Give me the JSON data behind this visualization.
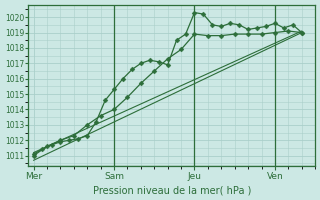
{
  "xlabel": "Pression niveau de la mer( hPa )",
  "background_color": "#cce8e4",
  "grid_color": "#aacfca",
  "line_color": "#2d6e3a",
  "ylim": [
    1010.3,
    1020.8
  ],
  "yticks": [
    1011,
    1012,
    1013,
    1014,
    1015,
    1016,
    1017,
    1018,
    1019,
    1020
  ],
  "xtick_positions": [
    0,
    3,
    6,
    9
  ],
  "xtick_labels": [
    "Mer",
    "Sam",
    "Jeu",
    "Ven"
  ],
  "xlim": [
    -0.2,
    10.5
  ],
  "vlines_x": [
    3.0,
    6.0,
    9.0
  ],
  "series1_marked": {
    "x": [
      0,
      0.33,
      0.67,
      1.0,
      1.33,
      1.67,
      2.0,
      2.33,
      2.67,
      3.0,
      3.33,
      3.67,
      4.0,
      4.33,
      4.67,
      5.0,
      5.33,
      5.67,
      6.0,
      6.33,
      6.67,
      7.0,
      7.33,
      7.67,
      8.0,
      8.33,
      8.67,
      9.0,
      9.33,
      9.67,
      10.0
    ],
    "y": [
      1011.0,
      1011.4,
      1011.7,
      1011.9,
      1012.0,
      1012.1,
      1012.3,
      1013.2,
      1014.6,
      1015.3,
      1016.0,
      1016.6,
      1017.0,
      1017.2,
      1017.1,
      1016.9,
      1018.5,
      1018.9,
      1020.3,
      1020.2,
      1019.5,
      1019.4,
      1019.6,
      1019.5,
      1019.2,
      1019.3,
      1019.4,
      1019.6,
      1019.3,
      1019.5,
      1019.0
    ]
  },
  "series2_marked": {
    "x": [
      0,
      0.5,
      1.0,
      1.5,
      2.0,
      2.5,
      3.0,
      3.5,
      4.0,
      4.5,
      5.0,
      5.5,
      6.0,
      6.5,
      7.0,
      7.5,
      8.0,
      8.5,
      9.0,
      9.5,
      10.0
    ],
    "y": [
      1011.1,
      1011.6,
      1012.0,
      1012.3,
      1013.0,
      1013.6,
      1014.0,
      1014.8,
      1015.7,
      1016.5,
      1017.3,
      1017.9,
      1018.9,
      1018.8,
      1018.8,
      1018.9,
      1018.9,
      1018.9,
      1019.0,
      1019.1,
      1019.0
    ]
  },
  "series3_line": {
    "x": [
      0,
      10.0
    ],
    "y": [
      1011.2,
      1019.1
    ]
  },
  "series4_line": {
    "x": [
      0,
      10.0
    ],
    "y": [
      1010.7,
      1019.0
    ]
  }
}
